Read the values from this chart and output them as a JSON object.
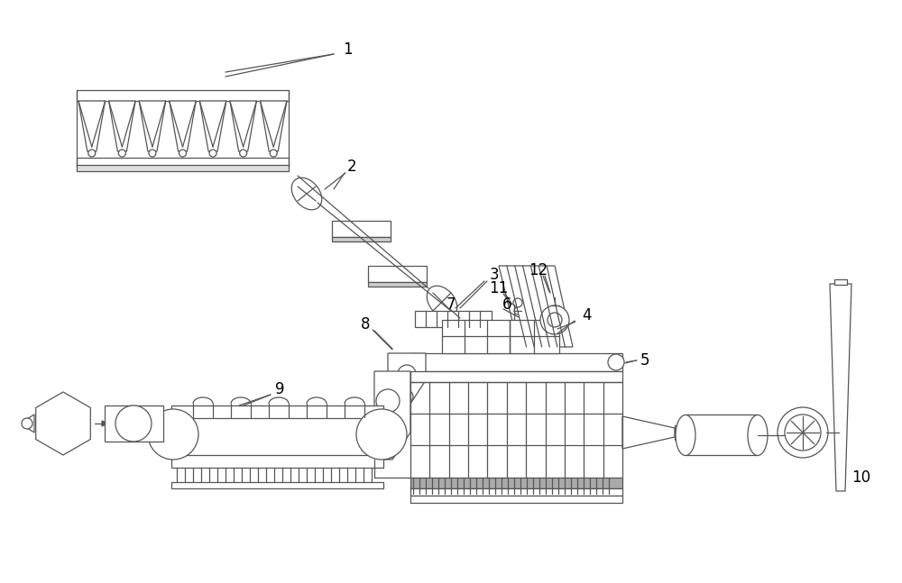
{
  "background_color": "#ffffff",
  "line_color": "#555555",
  "figsize": [
    10.0,
    6.47
  ],
  "dpi": 100,
  "lw": 0.9
}
